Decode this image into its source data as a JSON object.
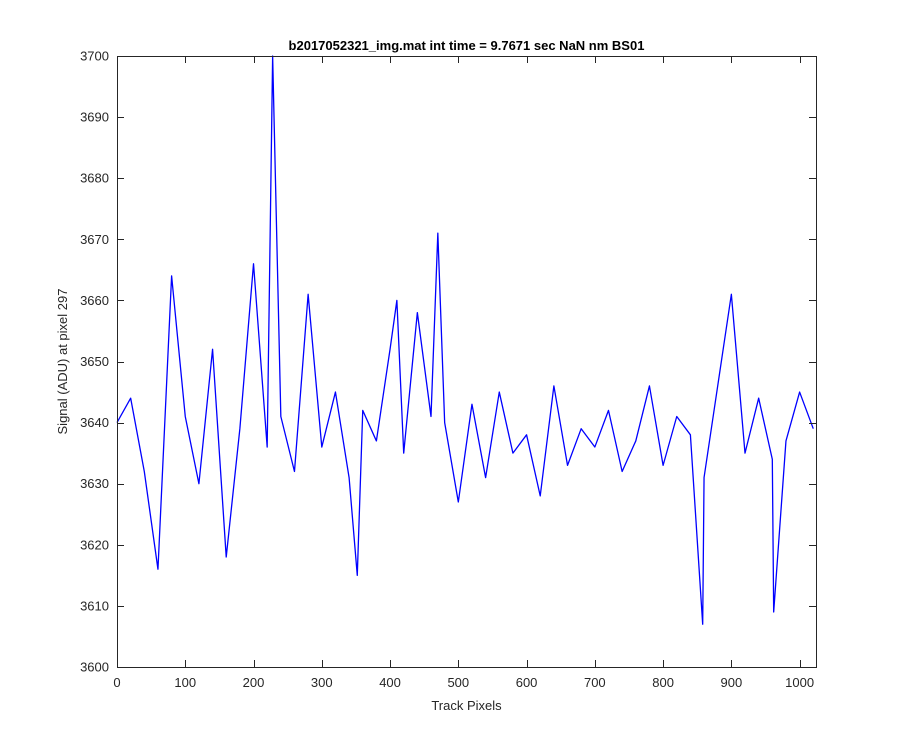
{
  "chart_data": {
    "type": "line",
    "title": "b2017052321_img.mat int time = 9.7671 sec  NaN nm BS01",
    "xlabel": "Track Pixels",
    "ylabel": "Signal (ADU) at pixel 297",
    "xlim": [
      0,
      1024
    ],
    "ylim": [
      3600,
      3700
    ],
    "xticks": [
      0,
      100,
      200,
      300,
      400,
      500,
      600,
      700,
      800,
      900,
      1000
    ],
    "yticks": [
      3600,
      3610,
      3620,
      3630,
      3640,
      3650,
      3660,
      3670,
      3680,
      3690,
      3700
    ],
    "xtick_labels": [
      "0",
      "100",
      "200",
      "300",
      "400",
      "500",
      "600",
      "700",
      "800",
      "900",
      "1000"
    ],
    "ytick_labels": [
      "3600",
      "3610",
      "3620",
      "3630",
      "3640",
      "3650",
      "3660",
      "3670",
      "3680",
      "3690",
      "3700"
    ],
    "grid": false,
    "line_color": "#0000ff",
    "series": [
      {
        "name": "",
        "x": [
          0,
          20,
          40,
          60,
          80,
          100,
          120,
          140,
          160,
          180,
          200,
          220,
          228,
          240,
          260,
          280,
          300,
          320,
          340,
          352,
          360,
          380,
          400,
          410,
          420,
          440,
          460,
          470,
          480,
          500,
          520,
          540,
          560,
          580,
          600,
          620,
          640,
          660,
          680,
          700,
          720,
          740,
          760,
          780,
          800,
          820,
          840,
          858,
          860,
          880,
          900,
          920,
          940,
          960,
          962,
          980,
          1000,
          1020
        ],
        "values": [
          3640,
          3644,
          3632,
          3616,
          3664,
          3641,
          3630,
          3652,
          3618,
          3639,
          3666,
          3636,
          3700,
          3641,
          3632,
          3661,
          3636,
          3645,
          3631,
          3615,
          3642,
          3637,
          3652,
          3660,
          3635,
          3658,
          3641,
          3671,
          3640,
          3627,
          3643,
          3631,
          3645,
          3635,
          3638,
          3628,
          3646,
          3633,
          3639,
          3636,
          3642,
          3632,
          3637,
          3646,
          3633,
          3641,
          3638,
          3607,
          3631,
          3646,
          3661,
          3635,
          3644,
          3634,
          3609,
          3637,
          3645,
          3639
        ]
      }
    ]
  }
}
